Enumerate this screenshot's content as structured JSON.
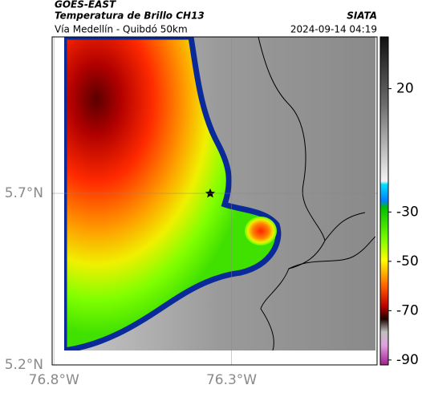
{
  "header": {
    "source": "GOES-EAST",
    "title": "Temperatura de Brillo CH13",
    "brand": "SIATA",
    "subtitle": "Vía Medellín - Quibdó 50km",
    "timestamp": "2024-09-14 04:19"
  },
  "map": {
    "xlim": [
      -76.805,
      -75.89
    ],
    "ylim": [
      5.2,
      6.156
    ],
    "xticks": [
      {
        "value": -76.8,
        "label": "76.8°W"
      },
      {
        "value": -76.3,
        "label": "76.3°W"
      }
    ],
    "yticks": [
      {
        "value": 5.7,
        "label": "5.7°N"
      },
      {
        "value": 5.2,
        "label": "5.2°N"
      }
    ],
    "grid": true
  },
  "colorbar": {
    "clim": [
      -92,
      41
    ],
    "ticks": [
      20,
      -30,
      -50,
      -70,
      -90
    ]
  }
}
